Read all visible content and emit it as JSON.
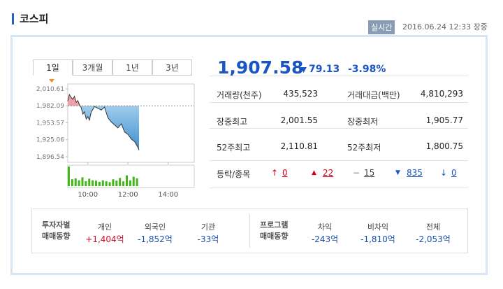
{
  "header": {
    "title": "코스피",
    "badge": "실시간",
    "timestamp": "2016.06.24 12:33 장중"
  },
  "tabs": [
    "1일",
    "3개월",
    "1년",
    "3년"
  ],
  "quote": {
    "price": "1,907.58",
    "change": "79.13",
    "change_pct": "-3.98%"
  },
  "stats": [
    [
      "거래량(천주)",
      "435,523",
      "거래대금(백만)",
      "4,810,293"
    ],
    [
      "장중최고",
      "2,001.55",
      "장중최저",
      "1,905.77"
    ],
    [
      "52주최고",
      "2,110.81",
      "52주최저",
      "1,800.75"
    ]
  ],
  "breadth": {
    "label": "등락/종목",
    "counts": [
      "0",
      "22",
      "15",
      "835",
      "0"
    ]
  },
  "investors": {
    "label": [
      "투자자별",
      "매매동향"
    ],
    "items": [
      {
        "name": "개인",
        "value": "+1,404억"
      },
      {
        "name": "외국인",
        "value": "-1,852억"
      },
      {
        "name": "기관",
        "value": "-33억"
      }
    ]
  },
  "program": {
    "label": [
      "프로그램",
      "매매동향"
    ],
    "items": [
      {
        "name": "차익",
        "value": "-243억"
      },
      {
        "name": "비차익",
        "value": "-1,810억"
      },
      {
        "name": "전체",
        "value": "-2,053억"
      }
    ]
  },
  "chart_data": {
    "type": "line",
    "x": [
      9.0,
      9.08,
      9.17,
      9.25,
      9.33,
      9.42,
      9.5,
      9.58,
      9.67,
      9.75,
      9.83,
      9.92,
      10.0,
      10.08,
      10.17,
      10.25,
      10.33,
      10.5,
      10.67,
      10.83,
      11.0,
      11.17,
      11.33,
      11.5,
      11.67,
      11.83,
      12.0,
      12.17,
      12.33,
      12.5,
      12.55
    ],
    "series": [
      {
        "color": "#333333",
        "values": [
          1990,
          2001,
          1996,
          1993,
          1998,
          1988,
          1991,
          1984,
          1979,
          1968,
          1972,
          1960,
          1964,
          1958,
          1972,
          1976,
          1981,
          1978,
          1975,
          1980,
          1962,
          1955,
          1950,
          1945,
          1952,
          1938,
          1934,
          1926,
          1922,
          1912,
          1907.58
        ]
      }
    ],
    "reference": 1982.09,
    "up_color": "#f2a0a8",
    "down_color": "#4f9fd6",
    "xlim": [
      9,
      15.3
    ],
    "xticks": [
      {
        "value": 10,
        "label": "10:00"
      },
      {
        "value": 12,
        "label": "12:00"
      },
      {
        "value": 14,
        "label": "14:00"
      }
    ],
    "ylim": [
      1887.1,
      2018.8
    ],
    "yticks": [
      {
        "value": 2010.61,
        "label": "2,010.61"
      },
      {
        "value": 1982.09,
        "label": "1,982.09"
      },
      {
        "value": 1953.57,
        "label": "1,953.57"
      },
      {
        "value": 1925.06,
        "label": "1,925.06"
      },
      {
        "value": 1896.54,
        "label": "1,896.54"
      }
    ],
    "volume": {
      "color": "#44b51a",
      "vlim": [
        0,
        100
      ],
      "x": [
        9.05,
        9.22,
        9.39,
        9.56,
        9.73,
        9.9,
        10.07,
        10.24,
        10.41,
        10.58,
        10.75,
        10.92,
        11.09,
        11.26,
        11.43,
        11.6,
        11.77,
        11.94,
        12.11,
        12.28,
        12.45
      ],
      "values": [
        100,
        35,
        40,
        30,
        45,
        25,
        38,
        30,
        28,
        22,
        30,
        25,
        20,
        35,
        28,
        42,
        25,
        55,
        30,
        48,
        40
      ]
    }
  }
}
